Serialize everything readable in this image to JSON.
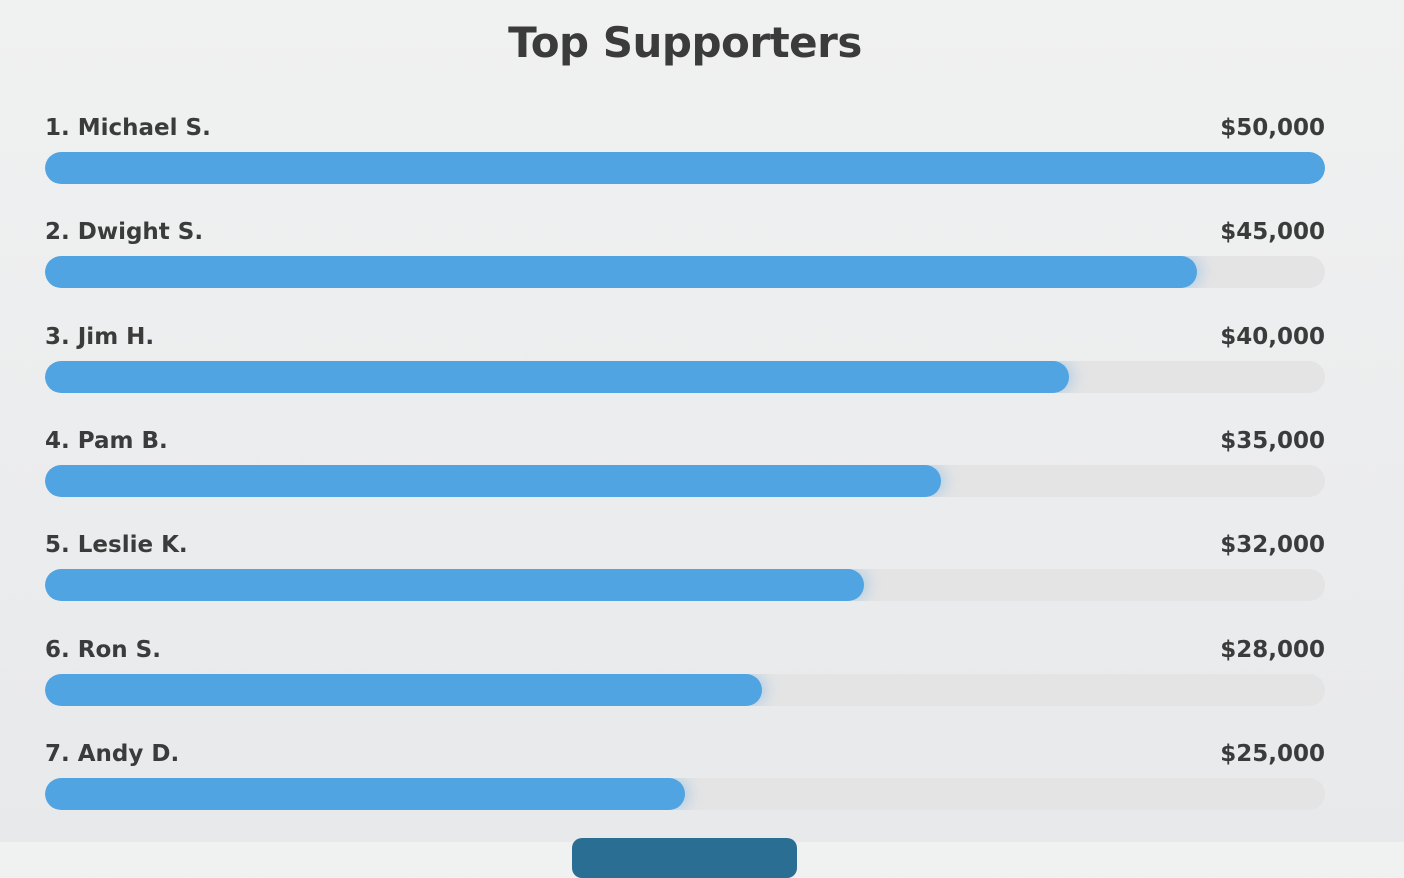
{
  "chart_data": {
    "type": "progress",
    "title": "Top Supporters",
    "categories": [
      "1. Michael S.",
      "2. Dwight S.",
      "3. Jim H.",
      "4. Pam B.",
      "5. Leslie K.",
      "6. Ron S.",
      "7. Andy D."
    ],
    "values": [
      50000,
      45000,
      40000,
      35000,
      32000,
      28000,
      25000
    ],
    "value_labels": [
      "$50,000",
      "$45,000",
      "$40,000",
      "$35,000",
      "$32,000",
      "$28,000",
      "$25,000"
    ],
    "xlim": [
      0,
      50000
    ],
    "color": "#4fa4e1"
  }
}
